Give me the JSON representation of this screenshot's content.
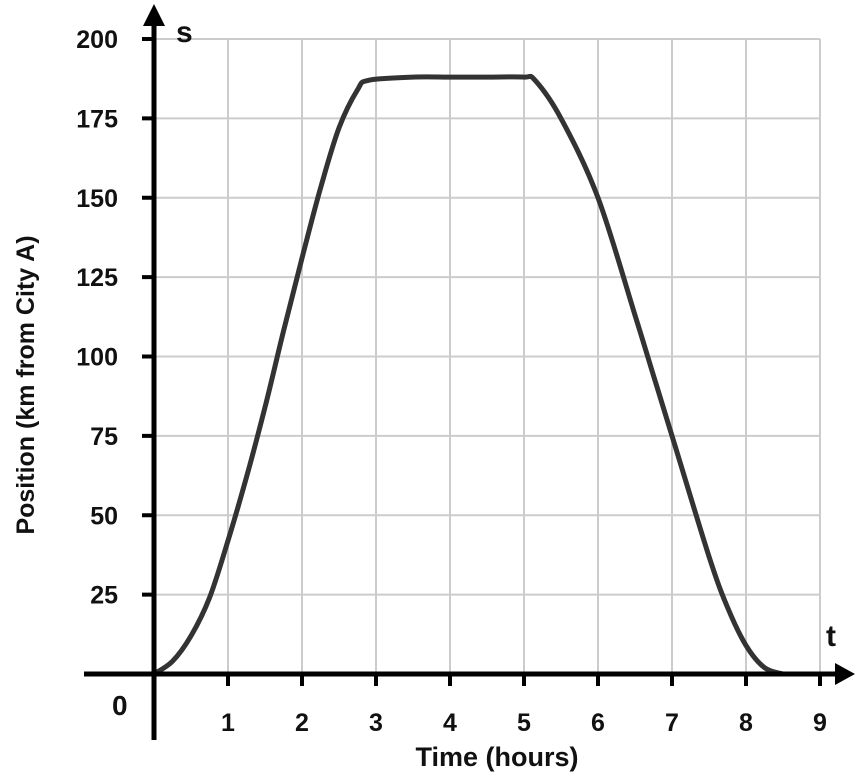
{
  "chart_data": {
    "type": "line",
    "xlabel": "Time (hours)",
    "ylabel": "Position (km from  City A)",
    "x_axis_symbol": "t",
    "y_axis_symbol": "s",
    "origin_label": "0",
    "xlim": [
      0,
      9
    ],
    "ylim": [
      0,
      200
    ],
    "x_ticks": [
      1,
      2,
      3,
      4,
      5,
      6,
      7,
      8,
      9
    ],
    "y_ticks": [
      25,
      50,
      75,
      100,
      125,
      150,
      175,
      200
    ],
    "grid": true,
    "series": [
      {
        "x": [
          0,
          0.25,
          0.5,
          0.75,
          1,
          1.25,
          1.5,
          1.75,
          2,
          2.25,
          2.5,
          2.75,
          2.9,
          3.5,
          4,
          4.5,
          5,
          5.15,
          5.5,
          6,
          6.5,
          6.75,
          7,
          7.5,
          7.75,
          8,
          8.25,
          8.5
        ],
        "y": [
          0,
          4,
          12,
          24,
          42,
          62,
          84,
          108,
          131,
          153,
          172,
          184,
          187,
          188,
          188,
          188,
          188,
          187,
          175,
          150,
          113,
          94,
          75,
          37,
          21,
          9,
          2,
          0
        ]
      }
    ],
    "colors": {
      "line": "#333333",
      "grid": "#cccccc",
      "axis": "#000000"
    }
  }
}
